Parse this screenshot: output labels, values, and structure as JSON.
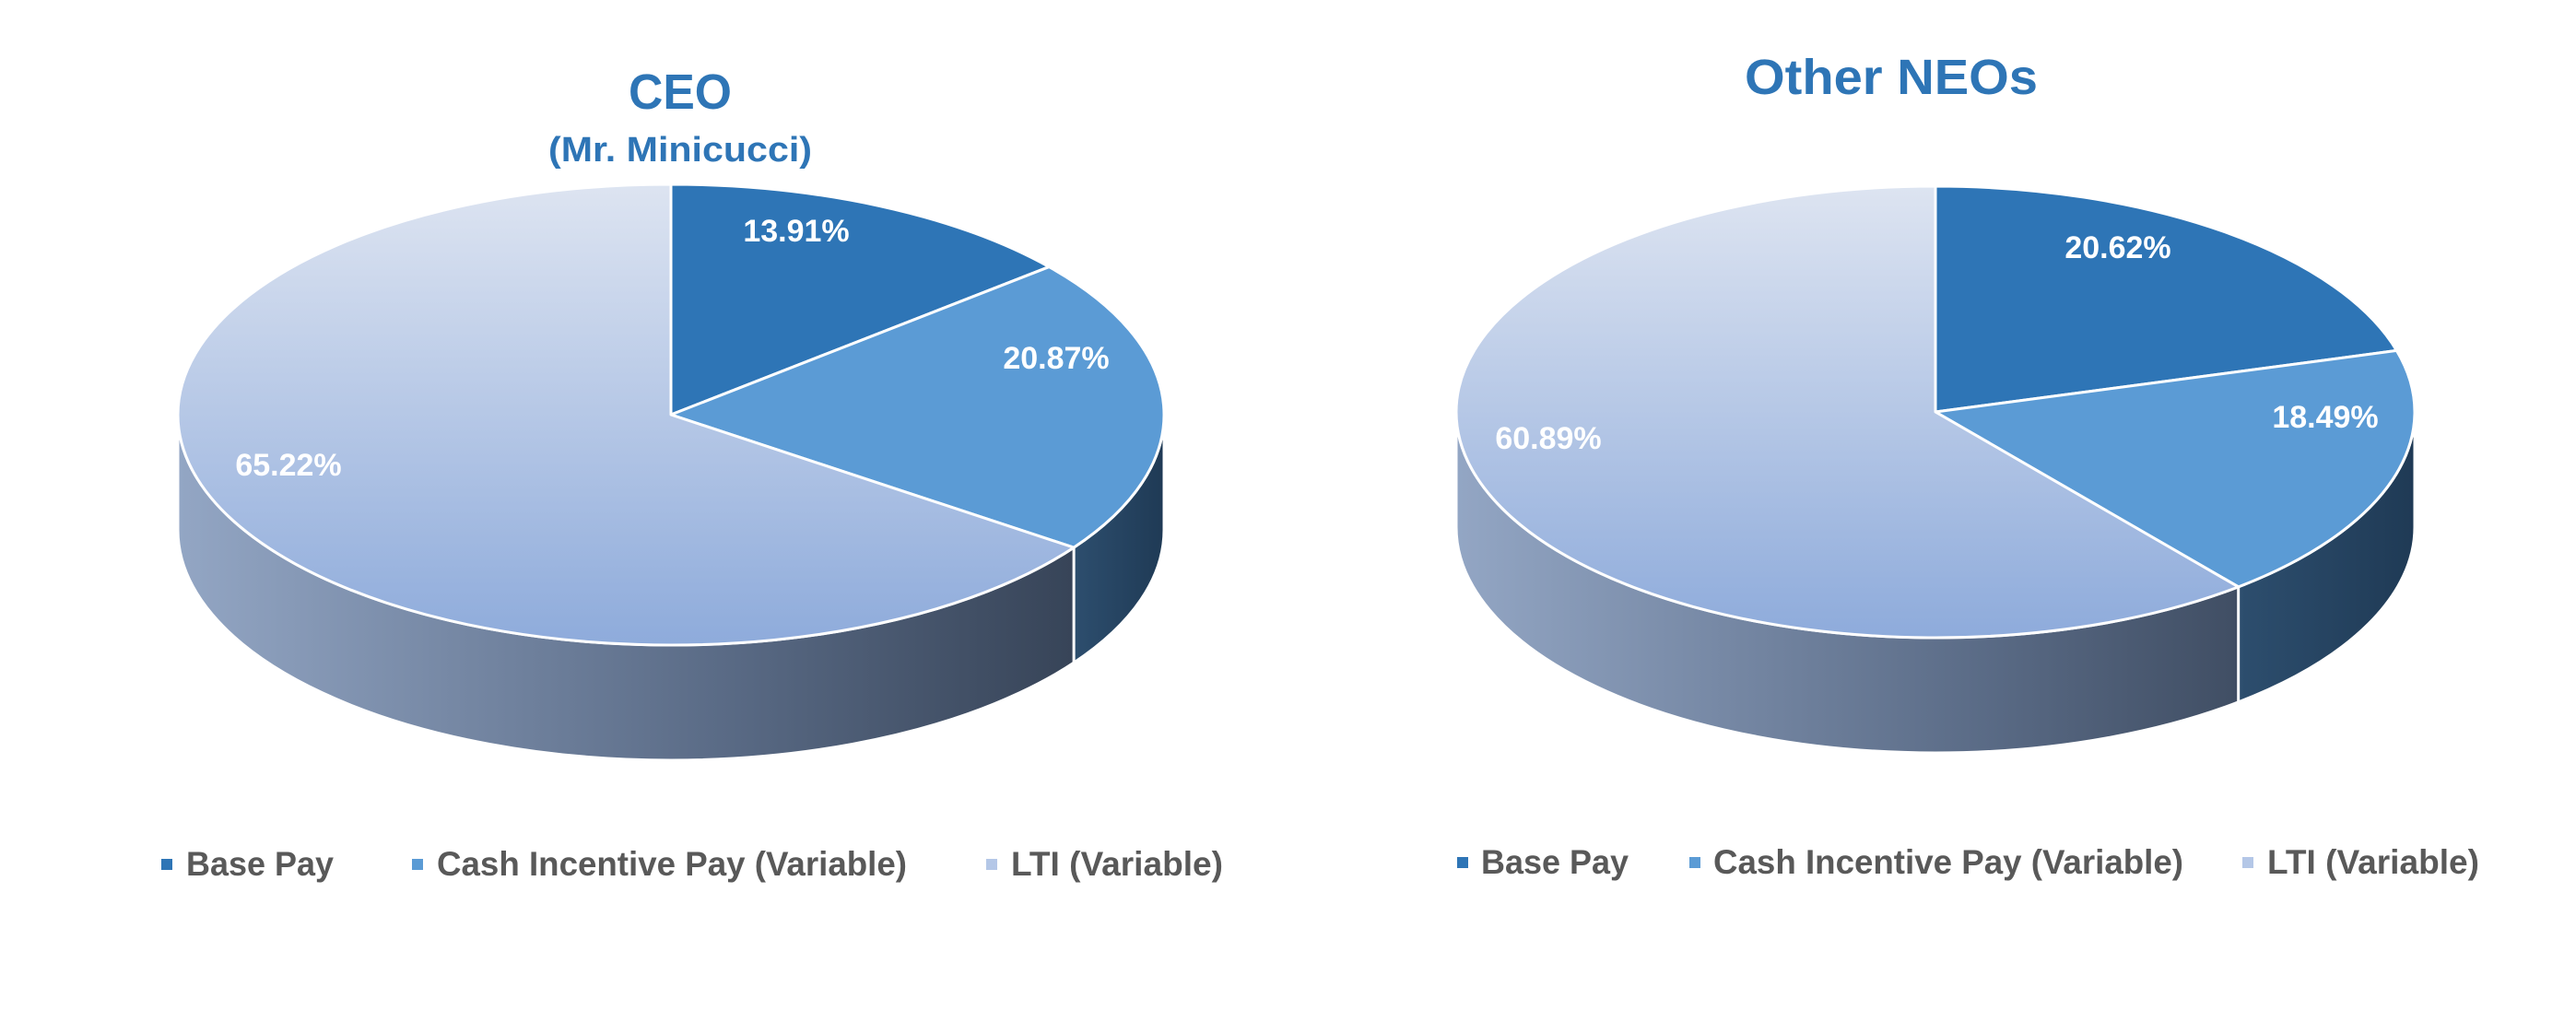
{
  "chart_data": [
    {
      "type": "pie",
      "title": "CEO",
      "subtitle": "(Mr. Minicucci)",
      "categories": [
        "Base Pay",
        "Cash Incentive Pay (Variable)",
        "LTI (Variable)"
      ],
      "values": [
        13.91,
        20.87,
        65.22
      ],
      "data_labels": [
        "13.91%",
        "20.87%",
        "65.22%"
      ],
      "legend_position": "bottom",
      "style": "3d"
    },
    {
      "type": "pie",
      "title": "Other NEOs",
      "subtitle": "",
      "categories": [
        "Base Pay",
        "Cash Incentive Pay (Variable)",
        "LTI (Variable)"
      ],
      "values": [
        20.62,
        18.49,
        60.89
      ],
      "data_labels": [
        "20.62%",
        "18.49%",
        "60.89%"
      ],
      "legend_position": "bottom",
      "style": "3d"
    }
  ],
  "colors": {
    "title": "#2E75B6",
    "base_pay": "#2E75B6",
    "cash_incentive": "#5B9BD5",
    "lti_top": "#DCE3F0",
    "lti_bottom": "#8FAADC",
    "side_light": "#8C9DB8",
    "side_dark": "#34435A",
    "side_blue_dark": "#24405D",
    "legend_text": "#595959"
  }
}
